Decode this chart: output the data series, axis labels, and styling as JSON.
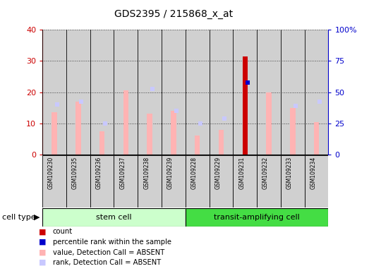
{
  "title": "GDS2395 / 215868_x_at",
  "samples": [
    "GSM109230",
    "GSM109235",
    "GSM109236",
    "GSM109237",
    "GSM109238",
    "GSM109239",
    "GSM109228",
    "GSM109229",
    "GSM109231",
    "GSM109232",
    "GSM109233",
    "GSM109234"
  ],
  "value_absent": [
    13.5,
    17.0,
    7.5,
    20.5,
    13.0,
    14.0,
    6.0,
    8.0,
    null,
    20.0,
    15.0,
    10.5
  ],
  "rank_absent": [
    16.0,
    17.0,
    10.0,
    null,
    21.0,
    14.0,
    10.0,
    11.5,
    null,
    null,
    15.5,
    17.0
  ],
  "count_present": [
    null,
    null,
    null,
    null,
    null,
    null,
    null,
    null,
    31.5,
    null,
    null,
    null
  ],
  "percentile_present": [
    null,
    null,
    null,
    null,
    null,
    null,
    null,
    null,
    23.0,
    null,
    null,
    null
  ],
  "ylim_left": [
    0,
    40
  ],
  "ylim_right": [
    0,
    100
  ],
  "yticks_left": [
    0,
    10,
    20,
    30,
    40
  ],
  "yticks_right": [
    0,
    25,
    50,
    75,
    100
  ],
  "ytick_labels_right": [
    "0",
    "25",
    "50",
    "75",
    "100%"
  ],
  "color_value_absent": "#ffb3b3",
  "color_rank_absent": "#c8c8ff",
  "color_count": "#cc0000",
  "color_percentile": "#0000cc",
  "stem_cell_color": "#ccffcc",
  "transit_cell_color": "#44dd44",
  "bar_bg_color": "#d0d0d0",
  "grid_color": "#404040",
  "left_axis_color": "#cc0000",
  "right_axis_color": "#0000cc",
  "stem_label": "stem cell",
  "transit_label": "transit-amplifying cell",
  "cell_type_label": "cell type"
}
